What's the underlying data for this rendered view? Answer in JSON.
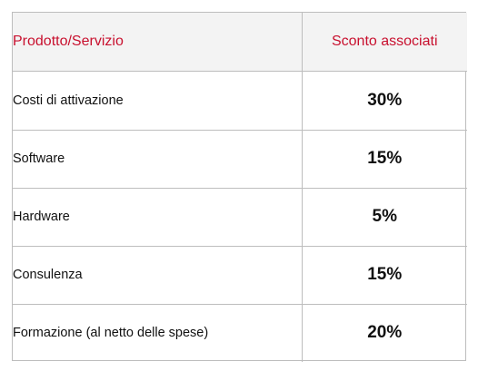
{
  "table": {
    "headers": {
      "product": "Prodotto/Servizio",
      "discount": "Sconto associati"
    },
    "rows": [
      {
        "product": "Costi di attivazione",
        "discount": "30%"
      },
      {
        "product": "Software",
        "discount": "15%"
      },
      {
        "product": "Hardware",
        "discount": "5%"
      },
      {
        "product": "Consulenza",
        "discount": "15%"
      },
      {
        "product": "Formazione (al netto delle spese)",
        "discount": "20%"
      }
    ]
  },
  "colors": {
    "header_text": "#c8102e",
    "header_background": "#f3f3f3",
    "border": "#bdbdbd",
    "body_text": "#111111"
  }
}
